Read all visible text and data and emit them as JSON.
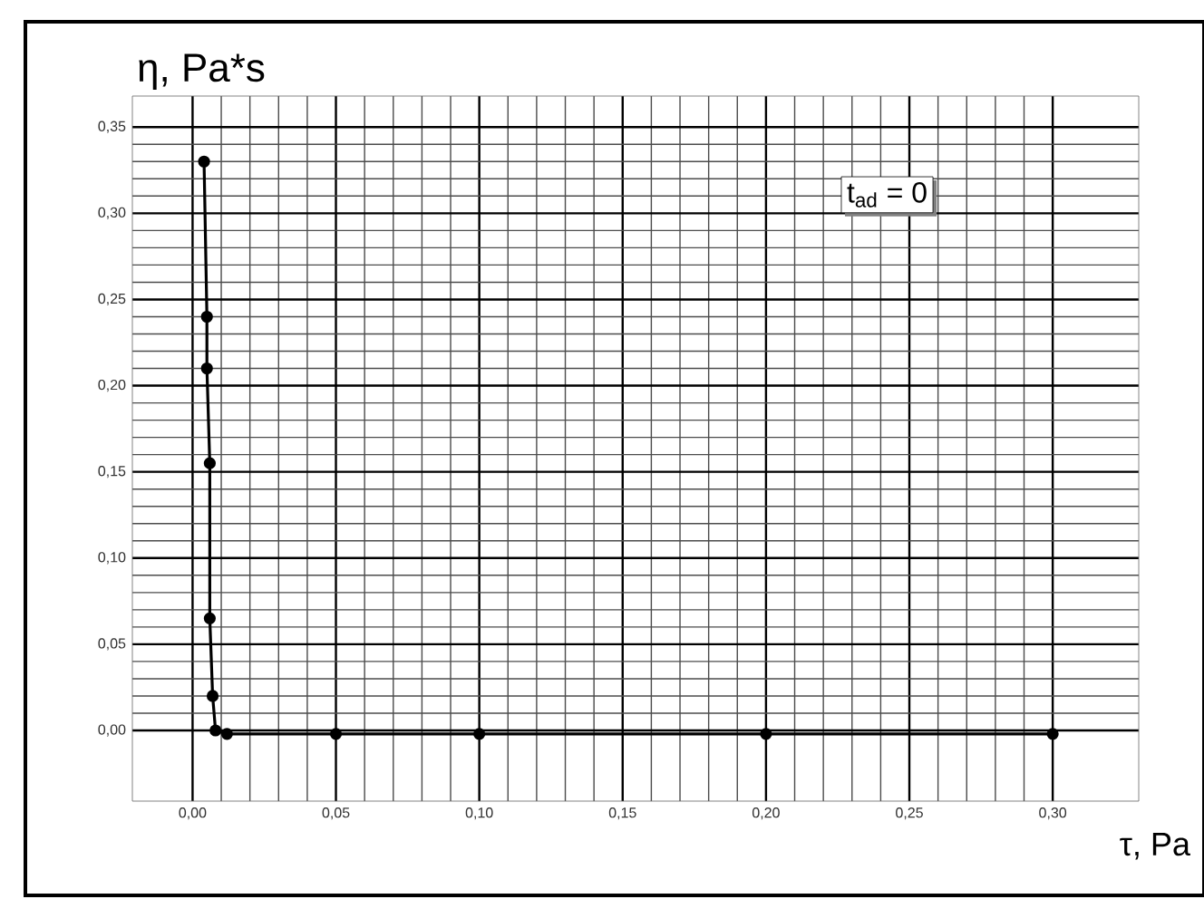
{
  "chart_data": {
    "type": "line",
    "xlabel": "τ, Pa",
    "ylabel": "η, Pa*s",
    "annotations": [
      "t$_{ad}$ = 0"
    ],
    "x": [
      0.004,
      0.005,
      0.005,
      0.006,
      0.006,
      0.007,
      0.008,
      0.012,
      0.05,
      0.1,
      0.2,
      0.3
    ],
    "values": [
      0.33,
      0.24,
      0.21,
      0.155,
      0.065,
      0.02,
      0.0,
      -0.002,
      -0.002,
      -0.002,
      -0.002,
      -0.002
    ],
    "color": "#000000",
    "marker": "circle",
    "line_style": "solid",
    "grid": true,
    "xlim": [
      -0.021,
      0.33
    ],
    "ylim": [
      -0.041,
      0.368
    ],
    "xticks": [
      {
        "value": 0,
        "label": "0,00"
      },
      {
        "value": 0.05,
        "label": "0,05"
      },
      {
        "value": 0.1,
        "label": "0,10"
      },
      {
        "value": 0.15,
        "label": "0,15"
      },
      {
        "value": 0.2,
        "label": "0,20"
      },
      {
        "value": 0.25,
        "label": "0,25"
      },
      {
        "value": 0.3,
        "label": "0,30"
      }
    ],
    "yticks": [
      {
        "value": 0,
        "label": "0,00"
      },
      {
        "value": 0.05,
        "label": "0,05"
      },
      {
        "value": 0.1,
        "label": "0,10"
      },
      {
        "value": 0.15,
        "label": "0,15"
      },
      {
        "value": 0.2,
        "label": "0,20"
      },
      {
        "value": 0.25,
        "label": "0,25"
      },
      {
        "value": 0.3,
        "label": "0,30"
      },
      {
        "value": 0.35,
        "label": "0,35"
      }
    ]
  }
}
